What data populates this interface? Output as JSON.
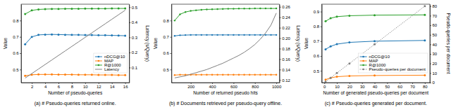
{
  "chart_data": [
    {
      "type": "line",
      "title": "(a) # Pseudo-queries returned online.",
      "x_label": "Number of pseudo-queries",
      "y_label": "Value",
      "y2_label": "Latency (s/Query)",
      "x": [
        1,
        2,
        3,
        4,
        5,
        6,
        7,
        8,
        9,
        10,
        11,
        12,
        13,
        14,
        15,
        16
      ],
      "xlim": [
        0.4,
        16.6
      ],
      "xticks": [
        2,
        4,
        6,
        8,
        10,
        12,
        14,
        16
      ],
      "ylim": [
        0.42,
        0.9
      ],
      "yticks": [
        0.5,
        0.6,
        0.7,
        0.8
      ],
      "y2lim": [
        0.0,
        0.52
      ],
      "y2ticks": [
        0.1,
        0.2,
        0.3,
        0.4,
        0.5
      ],
      "legend": "lower right",
      "series": [
        {
          "name": "nDCG@10",
          "color": "#1f77b4",
          "marker": "circle",
          "line_style": "solid",
          "values": [
            0.655,
            0.7,
            0.712,
            0.714,
            0.715,
            0.714,
            0.713,
            0.712,
            0.712,
            0.711,
            0.711,
            0.71,
            0.71,
            0.709,
            0.708,
            0.707
          ]
        },
        {
          "name": "MAP",
          "color": "#ff7f0e",
          "marker": "circle",
          "line_style": "solid",
          "values": [
            0.462,
            0.468,
            0.47,
            0.47,
            0.47,
            0.469,
            0.469,
            0.469,
            0.468,
            0.468,
            0.468,
            0.467,
            0.467,
            0.467,
            0.466,
            0.466
          ]
        },
        {
          "name": "R@1000",
          "color": "#2ca02c",
          "marker": "circle",
          "line_style": "solid",
          "values": [
            0.84,
            0.862,
            0.868,
            0.87,
            0.871,
            0.871,
            0.872,
            0.872,
            0.872,
            0.873,
            0.873,
            0.873,
            0.873,
            0.874,
            0.874,
            0.874
          ]
        },
        {
          "name": "Latency",
          "color": "#7f7f7f",
          "line_style": "solid",
          "axis": "y2",
          "values": [
            0.03,
            0.06,
            0.09,
            0.12,
            0.15,
            0.18,
            0.21,
            0.24,
            0.27,
            0.3,
            0.33,
            0.36,
            0.39,
            0.42,
            0.45,
            0.48
          ]
        }
      ]
    },
    {
      "type": "line",
      "title": "(b) # Documents retrieved per pseudo-query offline.",
      "x_label": "Number of returned pseudo hits",
      "y_label": "Value",
      "y2_label": "Latency (s/Query)",
      "x": [
        50,
        100,
        150,
        200,
        250,
        300,
        350,
        400,
        450,
        500,
        550,
        600,
        650,
        700,
        750,
        800,
        850,
        900,
        950,
        1000
      ],
      "xlim": [
        20,
        1030
      ],
      "xticks": [
        200,
        400,
        600,
        800,
        1000
      ],
      "ylim": [
        0.42,
        0.9
      ],
      "yticks": [
        0.5,
        0.6,
        0.7,
        0.8
      ],
      "y2lim": [
        0.115,
        0.265
      ],
      "y2ticks": [
        0.12,
        0.14,
        0.16,
        0.18,
        {
          "value": 0.2,
          "label": "0.20"
        },
        0.22,
        0.24,
        0.26
      ],
      "series": [
        {
          "name": "nDCG@10",
          "color": "#1f77b4",
          "marker": "circle",
          "line_style": "solid",
          "values": [
            0.706,
            0.71,
            0.711,
            0.712,
            0.712,
            0.712,
            0.712,
            0.712,
            0.712,
            0.712,
            0.712,
            0.712,
            0.712,
            0.712,
            0.712,
            0.712,
            0.712,
            0.712,
            0.712,
            0.712
          ]
        },
        {
          "name": "MAP",
          "color": "#ff7f0e",
          "marker": "circle",
          "line_style": "solid",
          "values": [
            0.466,
            0.468,
            0.468,
            0.468,
            0.468,
            0.468,
            0.468,
            0.468,
            0.468,
            0.468,
            0.468,
            0.468,
            0.468,
            0.468,
            0.468,
            0.468,
            0.468,
            0.468,
            0.468,
            0.468
          ]
        },
        {
          "name": "R@1000",
          "color": "#2ca02c",
          "marker": "circle",
          "line_style": "solid",
          "values": [
            0.8,
            0.838,
            0.852,
            0.859,
            0.863,
            0.866,
            0.868,
            0.869,
            0.87,
            0.871,
            0.872,
            0.872,
            0.873,
            0.873,
            0.873,
            0.874,
            0.874,
            0.874,
            0.874,
            0.874
          ]
        },
        {
          "name": "Latency",
          "color": "#7f7f7f",
          "line_style": "solid",
          "axis": "y2",
          "values": [
            0.124,
            0.126,
            0.128,
            0.131,
            0.134,
            0.137,
            0.14,
            0.144,
            0.148,
            0.152,
            0.157,
            0.162,
            0.167,
            0.173,
            0.18,
            0.188,
            0.198,
            0.21,
            0.225,
            0.248
          ]
        }
      ]
    },
    {
      "type": "line",
      "title": "(c) # Pseudo-queries generated per document.",
      "x_label": "Number of generated pseudo-queries per document",
      "y_label": "Value",
      "y2_label": "Pseudo-queries per document",
      "x": [
        1,
        5,
        10,
        20,
        40,
        80
      ],
      "xlim": [
        -2,
        84
      ],
      "xticks": [
        0,
        10,
        20,
        30,
        40,
        50,
        60,
        70,
        80
      ],
      "ylim": [
        0.42,
        0.95
      ],
      "yticks": [
        0.5,
        0.6,
        0.7,
        0.8,
        0.9
      ],
      "y2lim": [
        0,
        82
      ],
      "y2ticks": [
        0,
        10,
        20,
        30,
        40,
        50,
        60,
        70,
        80
      ],
      "legend": "lower right",
      "series": [
        {
          "name": "nDCG@10",
          "color": "#1f77b4",
          "marker": "circle",
          "line_style": "solid",
          "values": [
            0.645,
            0.665,
            0.68,
            0.692,
            0.7,
            0.705
          ]
        },
        {
          "name": "MAP",
          "color": "#ff7f0e",
          "marker": "circle",
          "line_style": "solid",
          "values": [
            0.44,
            0.452,
            0.46,
            0.465,
            0.468,
            0.47
          ]
        },
        {
          "name": "R@1000",
          "color": "#2ca02c",
          "marker": "circle",
          "line_style": "solid",
          "values": [
            0.835,
            0.855,
            0.866,
            0.872,
            0.876,
            0.878
          ]
        },
        {
          "name": "Pseudo-queries per document",
          "color": "#7f7f7f",
          "marker": "circle",
          "line_style": "dotted",
          "axis": "y2",
          "values": [
            1,
            5,
            10,
            20,
            40,
            80
          ]
        }
      ]
    }
  ]
}
